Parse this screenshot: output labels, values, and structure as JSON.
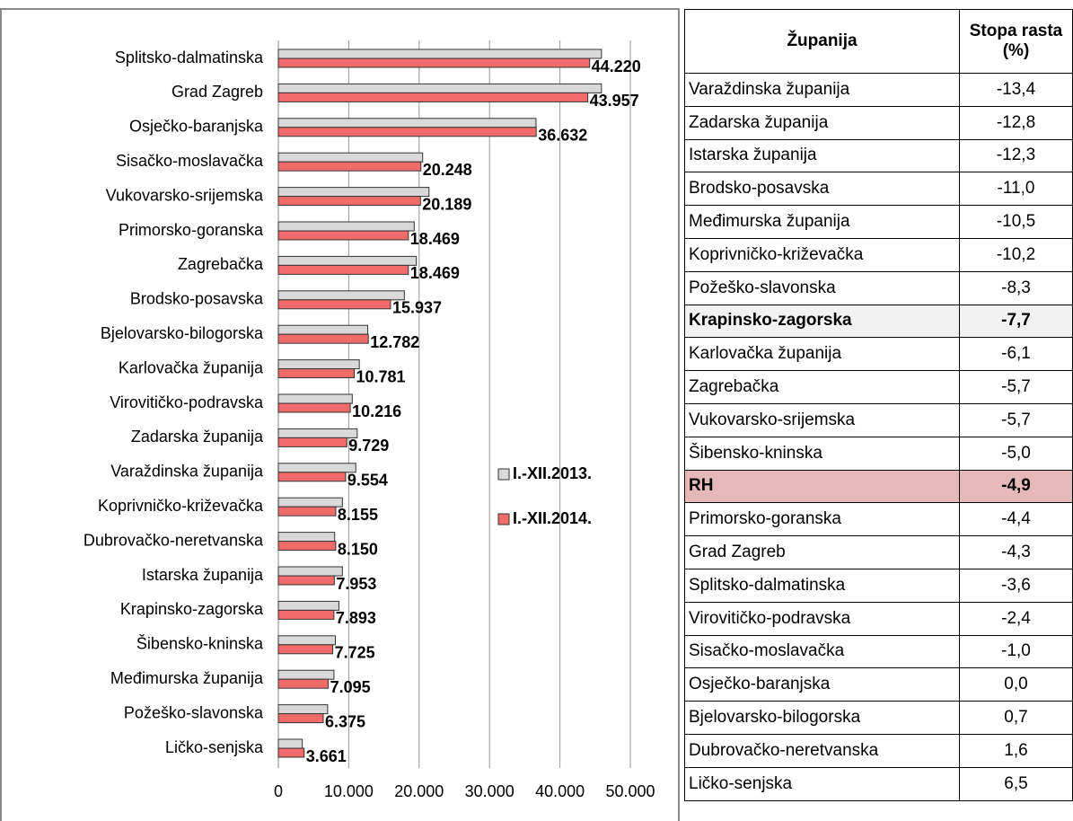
{
  "chart_data": {
    "type": "barh",
    "categories": [
      "Splitsko-dalmatinska",
      "Grad Zagreb",
      "Osječko-baranjska",
      "Sisačko-moslavačka",
      "Vukovarsko-srijemska",
      "Primorsko-goranska",
      "Zagrebačka",
      "Brodsko-posavska",
      "Bjelovarsko-bilogorska",
      "Karlovačka županija",
      "Virovitičko-podravska",
      "Zadarska županija",
      "Varaždinska županija",
      "Koprivničko-križevačka",
      "Dubrovačko-neretvanska",
      "Istarska županija",
      "Krapinsko-zagorska",
      "Šibensko-kninska",
      "Međimurska županija",
      "Požeško-slavonska",
      "Ličko-senjska"
    ],
    "series": [
      {
        "name": "I.-XII.2013.",
        "color": "#d9d9d9",
        "values": [
          45900,
          45900,
          36600,
          20500,
          21400,
          19300,
          19600,
          17900,
          12700,
          11500,
          10500,
          11200,
          11000,
          9100,
          8000,
          9100,
          8600,
          8100,
          7900,
          7000,
          3400
        ]
      },
      {
        "name": "I.-XII.2014.",
        "color": "#f26b6b",
        "values": [
          44220,
          43957,
          36632,
          20248,
          20189,
          18469,
          18469,
          15937,
          12782,
          10781,
          10216,
          9729,
          9554,
          8155,
          8150,
          7953,
          7893,
          7725,
          7095,
          6375,
          3661
        ],
        "value_labels": [
          "44.220",
          "43.957",
          "36.632",
          "20.248",
          "20.189",
          "18.469",
          "18.469",
          "15.937",
          "12.782",
          "10.781",
          "10.216",
          "9.729",
          "9.554",
          "8.155",
          "8.150",
          "7.953",
          "7.893",
          "7.725",
          "7.095",
          "6.375",
          "3.661"
        ]
      }
    ],
    "xlim": [
      0,
      50000
    ],
    "xticks": [
      0,
      {
        "value": 10000,
        "label": "10.000"
      },
      {
        "value": 20000,
        "label": "20.000"
      },
      {
        "value": 30000,
        "label": "30.000"
      },
      {
        "value": 40000,
        "label": "40.000"
      },
      {
        "value": 50000,
        "label": "50.000"
      }
    ],
    "grid": true,
    "legend": "right"
  },
  "table": {
    "header": [
      "Županija",
      "Stopa rasta (%)"
    ],
    "rows": [
      [
        "Varaždinska županija",
        "-13,4"
      ],
      [
        "Zadarska županija",
        "-12,8"
      ],
      [
        "Istarska županija",
        "-12,3"
      ],
      [
        "Brodsko-posavska",
        "-11,0"
      ],
      [
        "Međimurska županija",
        "-10,5"
      ],
      [
        "Koprivničko-križevačka",
        "-10,2"
      ],
      [
        "Požeško-slavonska",
        "-8,3"
      ],
      [
        "Krapinsko-zagorska",
        "-7,7"
      ],
      [
        "Karlovačka županija",
        "-6,1"
      ],
      [
        "Zagrebačka",
        "-5,7"
      ],
      [
        "Vukovarsko-srijemska",
        "-5,7"
      ],
      [
        "Šibensko-kninska",
        "-5,0"
      ],
      [
        "RH",
        "-4,9"
      ],
      [
        "Primorsko-goranska",
        "-4,4"
      ],
      [
        "Grad Zagreb",
        "-4,3"
      ],
      [
        "Splitsko-dalmatinska",
        "-3,6"
      ],
      [
        "Virovitičko-podravska",
        "-2,4"
      ],
      [
        "Sisačko-moslavačka",
        "-1,0"
      ],
      [
        "Osječko-baranjska",
        "0,0"
      ],
      [
        "Bjelovarsko-bilogorska",
        "0,7"
      ],
      [
        "Dubrovačko-neretvanska",
        "1,6"
      ],
      [
        "Ličko-senjska",
        "6,5"
      ]
    ]
  }
}
